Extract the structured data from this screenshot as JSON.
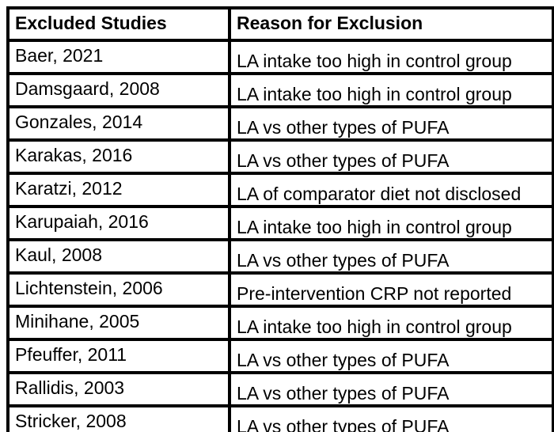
{
  "colors": {
    "background": "#ffffff",
    "border": "#000000",
    "text": "#000000"
  },
  "table": {
    "headers": {
      "excluded_studies": "Excluded Studies",
      "reason_for_exclusion": "Reason for Exclusion"
    },
    "rows": [
      {
        "study": "Baer, 2021",
        "reason": "LA intake too high in control group"
      },
      {
        "study": "Damsgaard, 2008",
        "reason": "LA intake too high in control group"
      },
      {
        "study": "Gonzales, 2014",
        "reason": "LA vs other types of PUFA"
      },
      {
        "study": "Karakas, 2016",
        "reason": "LA vs other types of PUFA"
      },
      {
        "study": "Karatzi, 2012",
        "reason": "LA of comparator diet not disclosed"
      },
      {
        "study": "Karupaiah, 2016",
        "reason": "LA intake too high in control group"
      },
      {
        "study": "Kaul, 2008",
        "reason": "LA vs other types of PUFA"
      },
      {
        "study": "Lichtenstein, 2006",
        "reason": "Pre-intervention CRP not reported"
      },
      {
        "study": "Minihane, 2005",
        "reason": "LA intake too high in control group"
      },
      {
        "study": "Pfeuffer, 2011",
        "reason": "LA vs other types of PUFA"
      },
      {
        "study": "Rallidis, 2003",
        "reason": "LA vs other types of PUFA"
      },
      {
        "study": "Stricker, 2008",
        "reason": "LA vs other types of PUFA"
      }
    ]
  }
}
